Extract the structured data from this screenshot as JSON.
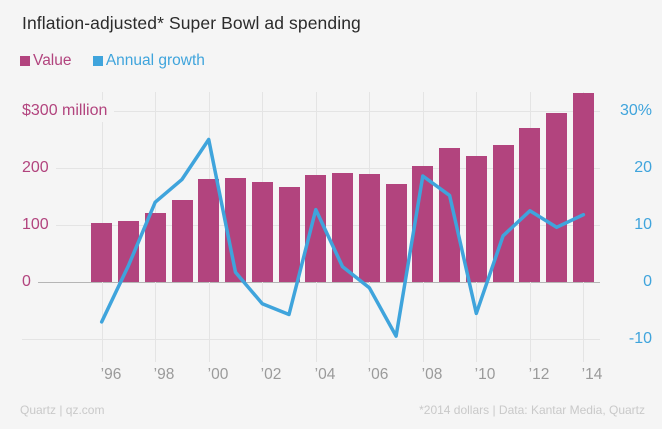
{
  "title": "Inflation-adjusted* Super Bowl ad spending",
  "legend": [
    {
      "label": "Value",
      "color": "#b2447e"
    },
    {
      "label": "Annual growth",
      "color": "#3fa4dc"
    }
  ],
  "footer": {
    "left": "Quartz | qz.com",
    "right": "*2014 dollars | Data: Kantar Media, Quartz"
  },
  "colors": {
    "background": "#f5f5f5",
    "bar": "#b2447e",
    "line": "#3fa4dc",
    "grid": "#e4e4e4",
    "zero_line": "#b5b5b5",
    "title": "#2b2b2b",
    "x_label": "#9a9a9a",
    "footer": "#c9c9c9"
  },
  "chart_data": {
    "type": "bar",
    "subtype": "bar+line combo",
    "title": "Inflation-adjusted* Super Bowl ad spending",
    "x": [
      1996,
      1997,
      1998,
      1999,
      2000,
      2001,
      2002,
      2003,
      2004,
      2005,
      2006,
      2007,
      2008,
      2009,
      2010,
      2011,
      2012,
      2013,
      2014
    ],
    "x_tick_labels": [
      "’96",
      "’98",
      "’00",
      "’02",
      "’04",
      "’06",
      "’08",
      "’10",
      "’12",
      "’14"
    ],
    "series": [
      {
        "name": "Value",
        "type": "bar",
        "axis": "left",
        "unit": "USD million (2014 dollars)",
        "color": "#b2447e",
        "values": [
          104,
          107,
          122,
          144,
          180,
          183,
          176,
          166,
          187,
          192,
          190,
          172,
          204,
          235,
          222,
          240,
          270,
          296,
          331
        ]
      },
      {
        "name": "Annual growth",
        "type": "line",
        "axis": "right",
        "unit": "percent",
        "color": "#3fa4dc",
        "values": [
          -7.0,
          2.9,
          14.0,
          18.0,
          25.0,
          1.7,
          -3.8,
          -5.7,
          12.7,
          2.7,
          -1.0,
          -9.5,
          18.6,
          15.2,
          -5.5,
          8.1,
          12.5,
          9.6,
          11.8
        ]
      }
    ],
    "left_axis": {
      "tick_labels": [
        "$300 million",
        "200",
        "100",
        "0"
      ],
      "tick_values": [
        300,
        200,
        100,
        0
      ],
      "range": [
        0,
        345
      ]
    },
    "right_axis": {
      "tick_labels": [
        "30%",
        "20",
        "10",
        "0",
        "-10"
      ],
      "tick_values": [
        30,
        20,
        10,
        0,
        -10
      ],
      "range": [
        -14,
        34.5
      ]
    },
    "grid": true,
    "legend_position": "top-left"
  }
}
